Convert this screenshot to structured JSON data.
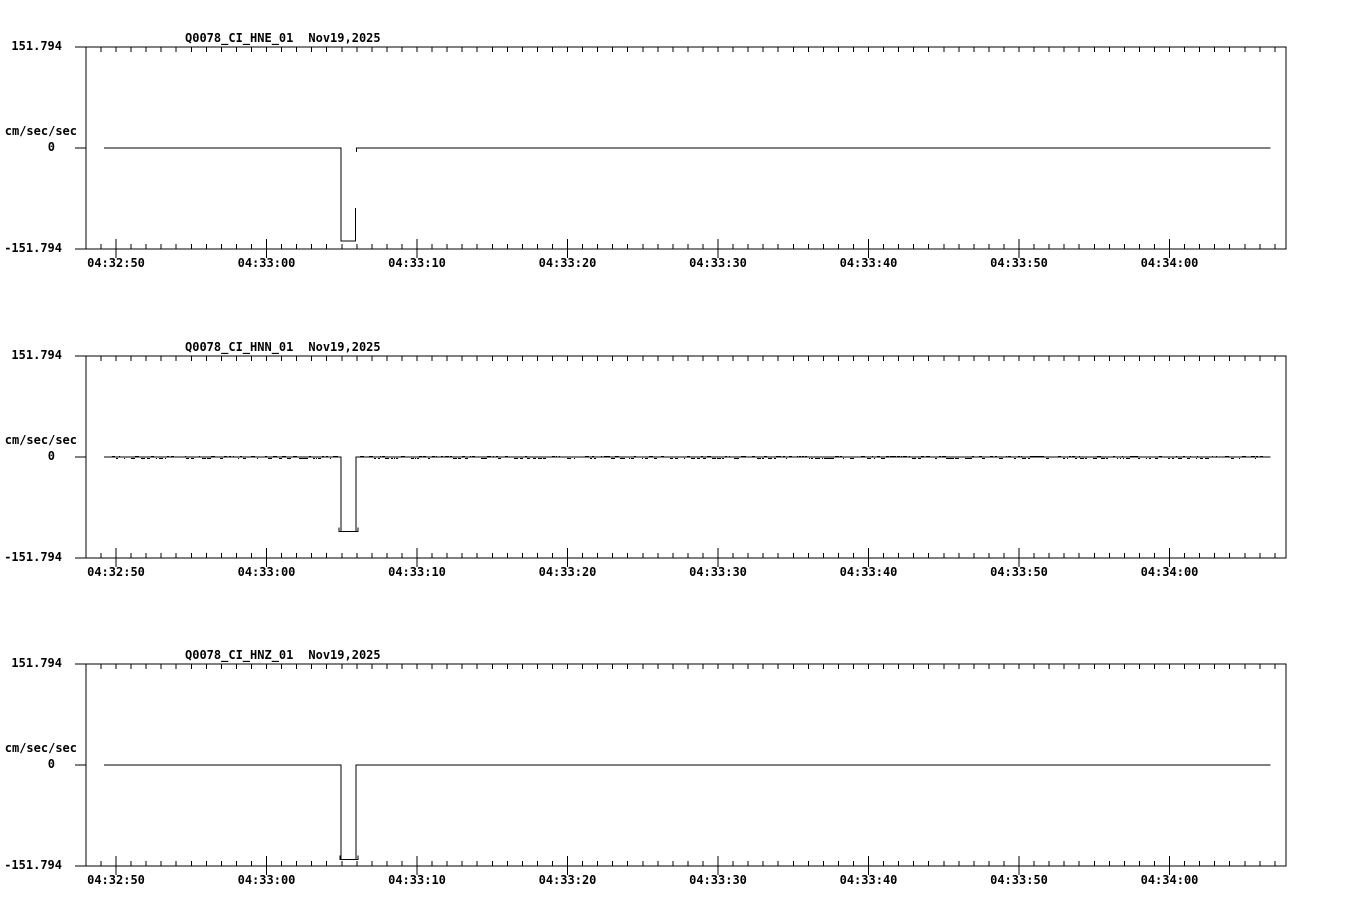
{
  "page": {
    "background": "#ffffff",
    "ink": "#000000"
  },
  "chart_data": {
    "type": "line",
    "description": "Three-component seismograph acceleration records, each with a one-second negative calibration pulse",
    "ylabel": "cm/sec/sec",
    "ylim": [
      -151.794,
      151.794
    ],
    "y_tick_labels": [
      "151.794",
      "0",
      "-151.794"
    ],
    "x_tick_labels": [
      "04:32:50",
      "04:33:00",
      "04:33:10",
      "04:33:20",
      "04:33:30",
      "04:33:40",
      "04:33:50",
      "04:34:00"
    ],
    "x_tick_seconds": [
      0,
      10,
      20,
      30,
      40,
      50,
      60,
      70
    ],
    "x_axis_range_seconds": [
      -2,
      77.7
    ],
    "x_minor_tick_interval_seconds": 1,
    "time_reference": "seconds after 04:32:50",
    "grid": false,
    "legend": false,
    "panels": [
      {
        "title": "Q0078_CI_HNE_01",
        "date": "Nov19,2025",
        "y_top_label": "151.794",
        "y_zero_label": "0",
        "y_bottom_label": "-151.794",
        "units_label": "cm/sec/sec",
        "baseline_value": 0,
        "noise": false,
        "pulse": {
          "start_s": 14.95,
          "end_s": 15.95,
          "value": -140,
          "recovery_step_value": -90
        },
        "trace_segments": [
          [
            [
              -0.8,
              0
            ],
            [
              14.95,
              0
            ],
            [
              14.95,
              -140
            ],
            [
              15.9,
              -140
            ],
            [
              15.9,
              -90
            ]
          ],
          [
            [
              15.98,
              -6
            ],
            [
              15.98,
              0
            ],
            [
              76.7,
              0
            ]
          ]
        ]
      },
      {
        "title": "Q0078_CI_HNN_01",
        "date": "Nov19,2025",
        "y_top_label": "151.794",
        "y_zero_label": "0",
        "y_bottom_label": "-151.794",
        "units_label": "cm/sec/sec",
        "baseline_value": 0,
        "noise": true,
        "noise_amplitude_units": 2,
        "pulse": {
          "start_s": 14.95,
          "end_s": 15.95,
          "value": -112
        },
        "trace_segments": [
          [
            [
              -0.8,
              0
            ],
            [
              14.95,
              0
            ],
            [
              14.95,
              -112
            ],
            [
              15.95,
              -112
            ],
            [
              15.95,
              0
            ],
            [
              76.7,
              0
            ]
          ],
          [
            [
              14.82,
              -106
            ],
            [
              14.82,
              -112
            ],
            [
              16.08,
              -112
            ],
            [
              16.08,
              -106
            ]
          ]
        ]
      },
      {
        "title": "Q0078_CI_HNZ_01",
        "date": "Nov19,2025",
        "y_top_label": "151.794",
        "y_zero_label": "0",
        "y_bottom_label": "-151.794",
        "units_label": "cm/sec/sec",
        "baseline_value": 0,
        "noise": false,
        "pulse": {
          "start_s": 14.95,
          "end_s": 15.95,
          "value": -142
        },
        "trace_segments": [
          [
            [
              -0.8,
              0
            ],
            [
              14.95,
              0
            ],
            [
              14.95,
              -142
            ],
            [
              15.95,
              -142
            ],
            [
              15.95,
              0
            ],
            [
              76.7,
              0
            ]
          ],
          [
            [
              14.87,
              -136
            ],
            [
              14.87,
              -142
            ],
            [
              16.08,
              -142
            ],
            [
              16.08,
              -136
            ]
          ]
        ]
      }
    ]
  }
}
